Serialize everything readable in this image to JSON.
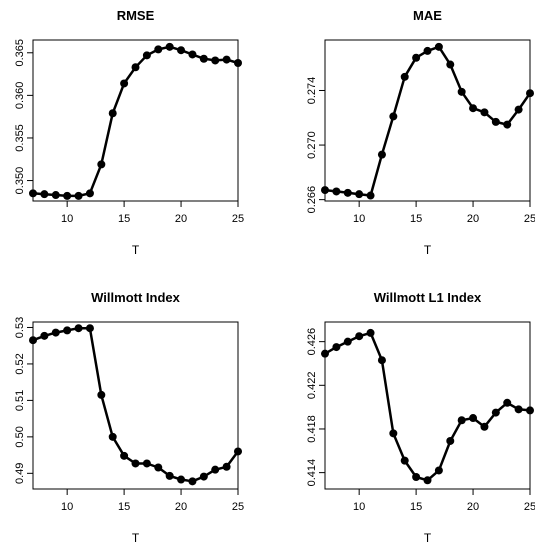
{
  "chart_data": [
    {
      "type": "line",
      "title": "RMSE",
      "xlabel": "T",
      "ylabel": "",
      "xlim": [
        7,
        25
      ],
      "ylim": [
        0.3476,
        0.3665
      ],
      "xticks": [
        10,
        15,
        20,
        25
      ],
      "yticks": [
        0.35,
        0.355,
        0.36,
        0.365
      ],
      "ytick_labels": [
        "0.350",
        "0.355",
        "0.360",
        "0.365"
      ],
      "x": [
        7,
        8,
        9,
        10,
        11,
        12,
        13,
        14,
        15,
        16,
        17,
        18,
        19,
        20,
        21,
        22,
        23,
        24,
        25
      ],
      "values": [
        0.3485,
        0.3484,
        0.3483,
        0.3482,
        0.3482,
        0.3485,
        0.3519,
        0.3579,
        0.3614,
        0.3633,
        0.3647,
        0.3654,
        0.3657,
        0.3653,
        0.3648,
        0.3643,
        0.3641,
        0.3642,
        0.3638
      ]
    },
    {
      "type": "line",
      "title": "MAE",
      "xlabel": "T",
      "ylabel": "",
      "xlim": [
        7,
        25
      ],
      "ylim": [
        0.2659,
        0.2777
      ],
      "xticks": [
        10,
        15,
        20,
        25
      ],
      "yticks": [
        0.266,
        0.27,
        0.274
      ],
      "ytick_labels": [
        "0.266",
        "0.270",
        "0.274"
      ],
      "x": [
        7,
        8,
        9,
        10,
        11,
        12,
        13,
        14,
        15,
        16,
        17,
        18,
        19,
        20,
        21,
        22,
        23,
        24,
        25
      ],
      "values": [
        0.2667,
        0.2666,
        0.2665,
        0.2664,
        0.2663,
        0.2693,
        0.2721,
        0.275,
        0.2764,
        0.2769,
        0.2772,
        0.2759,
        0.2739,
        0.2727,
        0.2724,
        0.2717,
        0.2715,
        0.2726,
        0.2738
      ]
    },
    {
      "type": "line",
      "title": "Willmott Index",
      "xlabel": "T",
      "ylabel": "",
      "xlim": [
        7,
        25
      ],
      "ylim": [
        0.4857,
        0.5315
      ],
      "xticks": [
        10,
        15,
        20,
        25
      ],
      "yticks": [
        0.49,
        0.5,
        0.51,
        0.52,
        0.53
      ],
      "ytick_labels": [
        "0.49",
        "0.50",
        "0.51",
        "0.52",
        "0.53"
      ],
      "x": [
        7,
        8,
        9,
        10,
        11,
        12,
        13,
        14,
        15,
        16,
        17,
        18,
        19,
        20,
        21,
        22,
        23,
        24,
        25
      ],
      "values": [
        0.5265,
        0.5277,
        0.5286,
        0.5292,
        0.5298,
        0.5298,
        0.5115,
        0.5,
        0.4948,
        0.4927,
        0.4927,
        0.4916,
        0.4893,
        0.4883,
        0.4878,
        0.4891,
        0.491,
        0.4918,
        0.496
      ]
    },
    {
      "type": "line",
      "title": "Willmott L1 Index",
      "xlabel": "T",
      "ylabel": "",
      "xlim": [
        7,
        25
      ],
      "ylim": [
        0.4125,
        0.4278
      ],
      "xticks": [
        10,
        15,
        20,
        25
      ],
      "yticks": [
        0.414,
        0.418,
        0.422,
        0.426
      ],
      "ytick_labels": [
        "0.414",
        "0.418",
        "0.422",
        "0.426"
      ],
      "x": [
        7,
        8,
        9,
        10,
        11,
        12,
        13,
        14,
        15,
        16,
        17,
        18,
        19,
        20,
        21,
        22,
        23,
        24,
        25
      ],
      "values": [
        0.4249,
        0.4255,
        0.426,
        0.4265,
        0.4268,
        0.4243,
        0.4176,
        0.4151,
        0.4136,
        0.4133,
        0.4142,
        0.4169,
        0.4188,
        0.419,
        0.4182,
        0.4195,
        0.4204,
        0.4198,
        0.4197
      ]
    }
  ]
}
